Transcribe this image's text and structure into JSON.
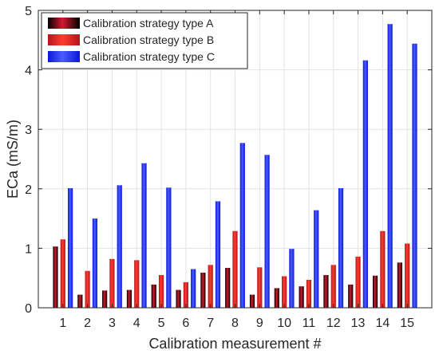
{
  "chart_data": {
    "type": "bar",
    "xlabel": "Calibration measurement #",
    "ylabel": "ECa (mS/m)",
    "ylim": [
      0,
      5
    ],
    "yticks": [
      0,
      1,
      2,
      3,
      4,
      5
    ],
    "grid": true,
    "legend_position": "top-left",
    "categories": [
      "1",
      "2",
      "3",
      "4",
      "5",
      "6",
      "7",
      "8",
      "9",
      "10",
      "11",
      "12",
      "13",
      "14",
      "15"
    ],
    "series": [
      {
        "name": "Calibration strategy type A",
        "color": "#000000",
        "highlight": "#d41a2e",
        "values": [
          1.03,
          0.22,
          0.29,
          0.3,
          0.39,
          0.3,
          0.59,
          0.67,
          0.22,
          0.33,
          0.36,
          0.55,
          0.39,
          0.54,
          0.76
        ]
      },
      {
        "name": "Calibration strategy type B",
        "color": "#b3161c",
        "highlight": "#ff3b2e",
        "values": [
          1.15,
          0.62,
          0.82,
          0.8,
          0.55,
          0.43,
          0.72,
          1.29,
          0.68,
          0.53,
          0.47,
          0.72,
          0.86,
          1.29,
          1.08
        ]
      },
      {
        "name": "Calibration strategy type C",
        "color": "#0a16d8",
        "highlight": "#4b5cff",
        "values": [
          2.01,
          1.5,
          2.06,
          2.43,
          2.02,
          0.65,
          1.79,
          2.77,
          2.57,
          0.99,
          1.64,
          2.01,
          4.16,
          4.77,
          4.44
        ]
      }
    ]
  }
}
